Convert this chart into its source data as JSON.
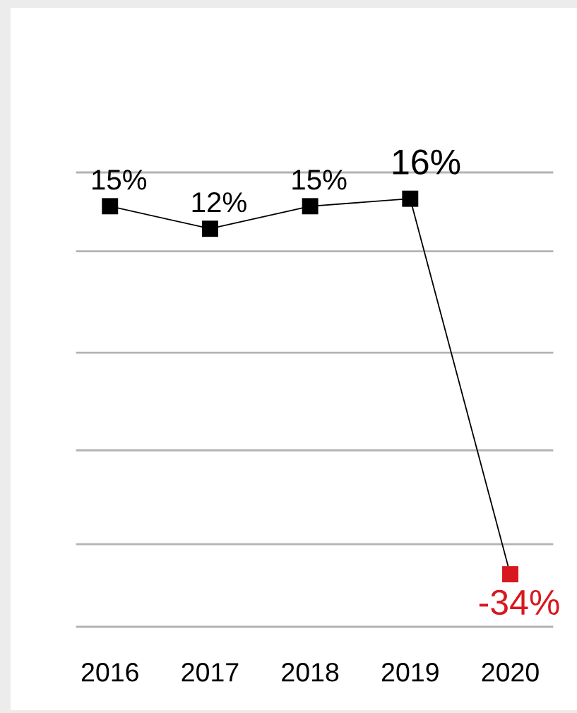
{
  "chart_data": {
    "type": "line",
    "categories": [
      "2016",
      "2017",
      "2018",
      "2019",
      "2020"
    ],
    "series": [
      {
        "color": "#000000",
        "colors": [
          "#000000",
          "#000000",
          "#000000",
          "#000000",
          "#d7181e"
        ],
        "values": [
          15,
          12,
          15,
          16,
          -34
        ],
        "value_labels": [
          "15%",
          "12%",
          "15%",
          "16%",
          "-34%"
        ]
      }
    ],
    "ylim": [
      -41,
      19.5
    ],
    "yticks": [
      {
        "value": 19.5,
        "label": null
      },
      {
        "value": 9,
        "label": null
      },
      {
        "value": -4.5,
        "label": null
      },
      {
        "value": -17.5,
        "label": null
      },
      {
        "value": -30,
        "label": null
      },
      {
        "value": -41,
        "label": null
      }
    ],
    "grid": "y",
    "marker": "square",
    "line_style": "solid",
    "tick_labels": "x"
  }
}
